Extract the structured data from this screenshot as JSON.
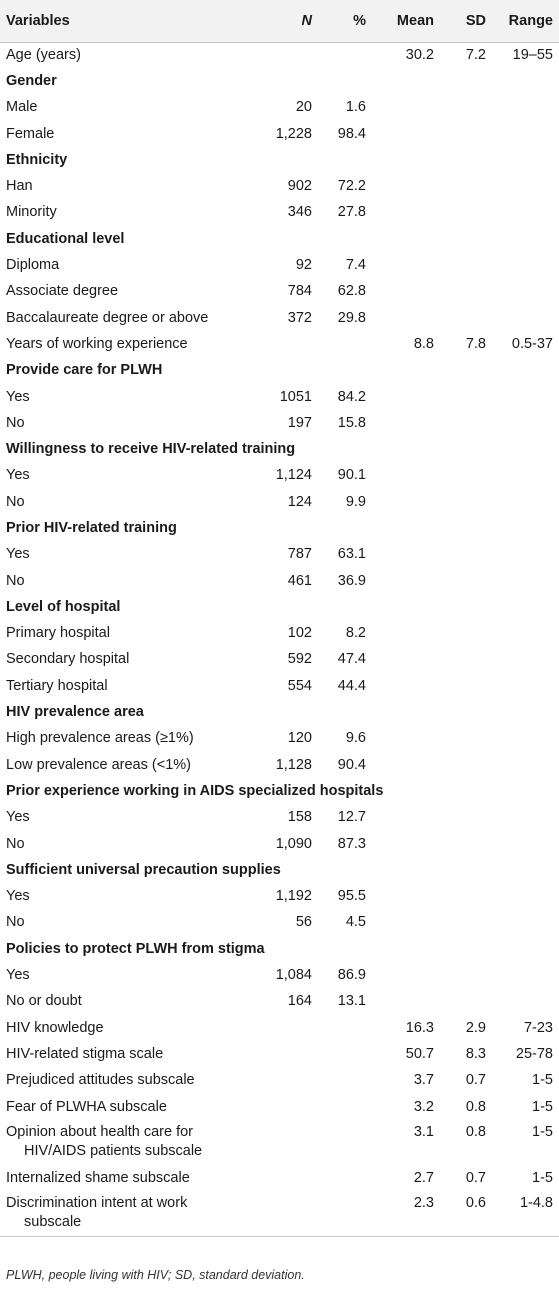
{
  "header": [
    "Variables",
    "N",
    "%",
    "Mean",
    "SD",
    "Range"
  ],
  "rows": [
    {
      "type": "data",
      "label": "Age (years)",
      "n": "",
      "pct": "",
      "mean": "30.2",
      "sd": "7.2",
      "range": "19–55"
    },
    {
      "type": "section",
      "label": "Gender"
    },
    {
      "type": "data",
      "label": "Male",
      "n": "20",
      "pct": "1.6",
      "mean": "",
      "sd": "",
      "range": ""
    },
    {
      "type": "data",
      "label": "Female",
      "n": "1,228",
      "pct": "98.4",
      "mean": "",
      "sd": "",
      "range": ""
    },
    {
      "type": "section",
      "label": "Ethnicity"
    },
    {
      "type": "data",
      "label": "Han",
      "n": "902",
      "pct": "72.2",
      "mean": "",
      "sd": "",
      "range": ""
    },
    {
      "type": "data",
      "label": "Minority",
      "n": "346",
      "pct": "27.8",
      "mean": "",
      "sd": "",
      "range": ""
    },
    {
      "type": "section",
      "label": "Educational level"
    },
    {
      "type": "data",
      "label": "Diploma",
      "n": "92",
      "pct": "7.4",
      "mean": "",
      "sd": "",
      "range": ""
    },
    {
      "type": "data",
      "label": "Associate degree",
      "n": "784",
      "pct": "62.8",
      "mean": "",
      "sd": "",
      "range": ""
    },
    {
      "type": "data",
      "label": "Baccalaureate degree or above",
      "n": "372",
      "pct": "29.8",
      "mean": "",
      "sd": "",
      "range": ""
    },
    {
      "type": "data",
      "label": "Years of working experience",
      "n": "",
      "pct": "",
      "mean": "8.8",
      "sd": "7.8",
      "range": "0.5-37"
    },
    {
      "type": "section",
      "label": "Provide care for PLWH"
    },
    {
      "type": "data",
      "label": "Yes",
      "n": "1051",
      "pct": "84.2",
      "mean": "",
      "sd": "",
      "range": ""
    },
    {
      "type": "data",
      "label": "No",
      "n": "197",
      "pct": "15.8",
      "mean": "",
      "sd": "",
      "range": ""
    },
    {
      "type": "section",
      "label": "Willingness to receive HIV-related training"
    },
    {
      "type": "data",
      "label": "Yes",
      "n": "1,124",
      "pct": "90.1",
      "mean": "",
      "sd": "",
      "range": ""
    },
    {
      "type": "data",
      "label": "No",
      "n": "124",
      "pct": "9.9",
      "mean": "",
      "sd": "",
      "range": ""
    },
    {
      "type": "section",
      "label": "Prior HIV-related training"
    },
    {
      "type": "data",
      "label": "Yes",
      "n": "787",
      "pct": "63.1",
      "mean": "",
      "sd": "",
      "range": ""
    },
    {
      "type": "data",
      "label": "No",
      "n": "461",
      "pct": "36.9",
      "mean": "",
      "sd": "",
      "range": ""
    },
    {
      "type": "section",
      "label": "Level of hospital"
    },
    {
      "type": "data",
      "label": "Primary hospital",
      "n": "102",
      "pct": "8.2",
      "mean": "",
      "sd": "",
      "range": ""
    },
    {
      "type": "data",
      "label": "Secondary hospital",
      "n": "592",
      "pct": "47.4",
      "mean": "",
      "sd": "",
      "range": ""
    },
    {
      "type": "data",
      "label": "Tertiary hospital",
      "n": "554",
      "pct": "44.4",
      "mean": "",
      "sd": "",
      "range": ""
    },
    {
      "type": "section",
      "label": "HIV prevalence area"
    },
    {
      "type": "data",
      "label": "High prevalence areas (≥1%)",
      "n": "120",
      "pct": "9.6",
      "mean": "",
      "sd": "",
      "range": ""
    },
    {
      "type": "data",
      "label": "Low prevalence areas (<1%)",
      "n": "1,128",
      "pct": "90.4",
      "mean": "",
      "sd": "",
      "range": ""
    },
    {
      "type": "section",
      "label": "Prior experience working in AIDS specialized hospitals"
    },
    {
      "type": "data",
      "label": "Yes",
      "n": "158",
      "pct": "12.7",
      "mean": "",
      "sd": "",
      "range": ""
    },
    {
      "type": "data",
      "label": "No",
      "n": "1,090",
      "pct": "87.3",
      "mean": "",
      "sd": "",
      "range": ""
    },
    {
      "type": "section",
      "label": "Sufficient universal precaution supplies"
    },
    {
      "type": "data",
      "label": "Yes",
      "n": "1,192",
      "pct": "95.5",
      "mean": "",
      "sd": "",
      "range": ""
    },
    {
      "type": "data",
      "label": "No",
      "n": "56",
      "pct": "4.5",
      "mean": "",
      "sd": "",
      "range": ""
    },
    {
      "type": "section",
      "label": "Policies to protect PLWH from stigma"
    },
    {
      "type": "data",
      "label": "Yes",
      "n": "1,084",
      "pct": "86.9",
      "mean": "",
      "sd": "",
      "range": ""
    },
    {
      "type": "data",
      "label": "No or doubt",
      "n": "164",
      "pct": "13.1",
      "mean": "",
      "sd": "",
      "range": ""
    },
    {
      "type": "data",
      "label": "HIV knowledge",
      "n": "",
      "pct": "",
      "mean": "16.3",
      "sd": "2.9",
      "range": "7-23"
    },
    {
      "type": "data",
      "label": "HIV-related stigma scale",
      "n": "",
      "pct": "",
      "mean": "50.7",
      "sd": "8.3",
      "range": "25-78"
    },
    {
      "type": "data",
      "label": "Prejudiced attitudes subscale",
      "n": "",
      "pct": "",
      "mean": "3.7",
      "sd": "0.7",
      "range": "1-5"
    },
    {
      "type": "data",
      "label": "Fear of PLWHA subscale",
      "n": "",
      "pct": "",
      "mean": "3.2",
      "sd": "0.8",
      "range": "1-5"
    },
    {
      "type": "data",
      "label": "Opinion about health care for",
      "label2": "HIV/AIDS patients subscale",
      "n": "",
      "pct": "",
      "mean": "3.1",
      "sd": "0.8",
      "range": "1-5"
    },
    {
      "type": "data",
      "label": "Internalized shame subscale",
      "n": "",
      "pct": "",
      "mean": "2.7",
      "sd": "0.7",
      "range": "1-5"
    },
    {
      "type": "data",
      "label": "Discrimination intent at work",
      "label2": "subscale",
      "n": "",
      "pct": "",
      "mean": "2.3",
      "sd": "0.6",
      "range": "1-4.8"
    }
  ],
  "footnote": "PLWH, people living with HIV; SD, standard deviation."
}
